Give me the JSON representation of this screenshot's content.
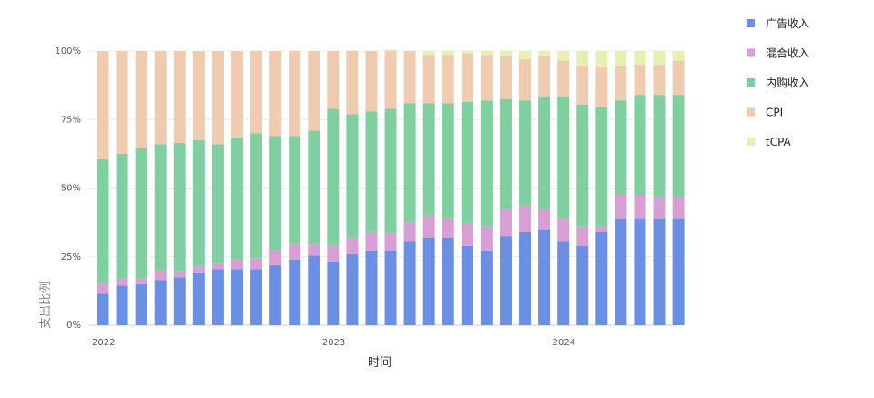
{
  "chart_data": {
    "type": "bar",
    "stacked": true,
    "normalized": true,
    "xlabel": "时间",
    "ylabel": "支出比例",
    "ylim": [
      0,
      100
    ],
    "y_ticks": [
      "0%",
      "25%",
      "50%",
      "75%",
      "100%"
    ],
    "x_ticks": [
      {
        "label": "2022",
        "index": 0
      },
      {
        "label": "2023",
        "index": 12
      },
      {
        "label": "2024",
        "index": 24
      }
    ],
    "legend_position": "top-right",
    "grid": true,
    "categories": [
      "2022-01",
      "2022-02",
      "2022-03",
      "2022-04",
      "2022-05",
      "2022-06",
      "2022-07",
      "2022-08",
      "2022-09",
      "2022-10",
      "2022-11",
      "2022-12",
      "2023-01",
      "2023-02",
      "2023-03",
      "2023-04",
      "2023-05",
      "2023-06",
      "2023-07",
      "2023-08",
      "2023-09",
      "2023-10",
      "2023-11",
      "2023-12",
      "2024-01",
      "2024-02",
      "2024-03",
      "2024-04",
      "2024-05",
      "2024-06",
      "2024-07"
    ],
    "series": [
      {
        "name": "广告收入",
        "color": "#6b8fe3",
        "values": [
          11.5,
          14.5,
          15,
          16.5,
          17.5,
          19,
          20.5,
          20.5,
          20.5,
          22,
          24,
          25.5,
          23,
          26,
          27,
          27,
          30.5,
          32,
          32,
          29,
          27,
          32.5,
          34,
          35,
          30.5,
          29,
          34,
          39,
          39,
          39,
          39
        ]
      },
      {
        "name": "混合收入",
        "color": "#d89fd4",
        "values": [
          3.5,
          2.5,
          2,
          3.5,
          2,
          2.5,
          2,
          3.5,
          4,
          5,
          5.5,
          4,
          6,
          6,
          7,
          6.5,
          7,
          8,
          7,
          8,
          9,
          10,
          9.5,
          7.5,
          8.5,
          7,
          2,
          8.5,
          8.5,
          8,
          8
        ]
      },
      {
        "name": "内购收入",
        "color": "#7fcfa1",
        "values": [
          45.5,
          45.5,
          47.5,
          46,
          47,
          46,
          43.5,
          44.5,
          45.5,
          42,
          39.5,
          41.5,
          50,
          45,
          44,
          45.5,
          43.5,
          41,
          42,
          44.5,
          46,
          40,
          38.5,
          41,
          44.5,
          44.5,
          43.5,
          34.5,
          36.5,
          37,
          37
        ]
      },
      {
        "name": "CPI",
        "color": "#efcbb0",
        "values": [
          39.5,
          37.5,
          35.5,
          34,
          33.5,
          32.5,
          34,
          31.5,
          30,
          31,
          31,
          29,
          21,
          23,
          22,
          21,
          19,
          17.5,
          17.5,
          17.5,
          16.5,
          15.5,
          15,
          14.5,
          13,
          14,
          14.5,
          12.5,
          11,
          11,
          12.5
        ]
      },
      {
        "name": "tCPA",
        "color": "#e8efb3",
        "values": [
          0,
          0,
          0,
          0,
          0,
          0,
          0,
          0,
          0,
          0,
          0,
          0,
          0,
          0,
          0,
          0.5,
          0,
          1.5,
          1.5,
          1,
          1.5,
          2,
          3,
          2,
          3.5,
          5.5,
          6,
          5.5,
          5,
          5,
          3.5
        ]
      }
    ]
  }
}
